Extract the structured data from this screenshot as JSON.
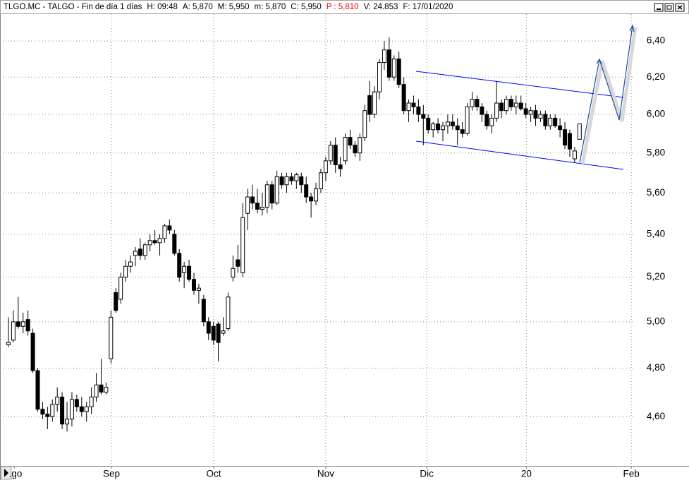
{
  "chart_data": {
    "type": "candlestick",
    "title": "TLGO.MC - TALGO - Fin de día 1 días",
    "info": [
      {
        "text": "H: 09:48",
        "color": "#000000"
      },
      {
        "text": "A: 5,870",
        "color": "#000000"
      },
      {
        "text": "M: 5,950",
        "color": "#000000"
      },
      {
        "text": "m: 5,870",
        "color": "#000000"
      },
      {
        "text": "C: 5,950",
        "color": "#000000"
      },
      {
        "text": "P : 5,810",
        "color": "#e00000"
      },
      {
        "text": "V: 24.853",
        "color": "#000000"
      },
      {
        "text": "F: 17/01/2020",
        "color": "#000000"
      }
    ],
    "log_scale": true,
    "grid": true,
    "up_color": "#ffffff",
    "down_color": "#000000",
    "wick_color": "#000000",
    "xlim": [
      -1.73,
      128.3
    ],
    "ylim": [
      4.405,
      6.553
    ],
    "xticks": [
      {
        "value": 1.2,
        "label": ".go"
      },
      {
        "value": 21.1,
        "label": "Sep"
      },
      {
        "value": 42.05,
        "label": "Oct"
      },
      {
        "value": 65.0,
        "label": "Nov"
      },
      {
        "value": 85.7,
        "label": "Dic"
      },
      {
        "value": 106.1,
        "label": "20"
      },
      {
        "value": 127.6,
        "label": "Feb"
      }
    ],
    "yticks": [
      {
        "value": 4.6,
        "label": "4,60"
      },
      {
        "value": 4.8,
        "label": "4,80"
      },
      {
        "value": 5.0,
        "label": "5,00"
      },
      {
        "value": 5.2,
        "label": "5,20"
      },
      {
        "value": 5.4,
        "label": "5,40"
      },
      {
        "value": 5.6,
        "label": "5,60"
      },
      {
        "value": 5.8,
        "label": "5,80"
      },
      {
        "value": 6.0,
        "label": "6,00"
      },
      {
        "value": 6.2,
        "label": "6,20"
      },
      {
        "value": 6.4,
        "label": "6,40"
      }
    ],
    "x": [
      0,
      1,
      2,
      3,
      4,
      5,
      6,
      7,
      8,
      9,
      10,
      11,
      12,
      13,
      14,
      15,
      16,
      17,
      18,
      19,
      20,
      21,
      22,
      23,
      24,
      25,
      26,
      27,
      28,
      29,
      30,
      31,
      32,
      33,
      34,
      35,
      36,
      37,
      38,
      39,
      40,
      41,
      42,
      43,
      44,
      45,
      46,
      47,
      48,
      49,
      50,
      51,
      52,
      53,
      54,
      55,
      56,
      57,
      58,
      59,
      60,
      61,
      62,
      63,
      64,
      65,
      66,
      67,
      68,
      69,
      70,
      71,
      72,
      73,
      74,
      75,
      76,
      77,
      78,
      79,
      80,
      81,
      82,
      83,
      84,
      85,
      86,
      87,
      88,
      89,
      90,
      91,
      92,
      93,
      94,
      95,
      96,
      97,
      98,
      99,
      100,
      101,
      102,
      103,
      104,
      105,
      106,
      107,
      108,
      109,
      110,
      111,
      112,
      113,
      114,
      115,
      116,
      117
    ],
    "open": [
      4.9,
      4.92,
      5.0,
      4.98,
      5.01,
      4.95,
      4.79,
      4.63,
      4.61,
      4.6,
      4.65,
      4.68,
      4.57,
      4.59,
      4.67,
      4.64,
      4.62,
      4.64,
      4.68,
      4.73,
      4.7,
      4.84,
      5.13,
      5.1,
      5.2,
      5.25,
      5.3,
      5.33,
      5.3,
      5.35,
      5.37,
      5.36,
      5.38,
      5.44,
      5.4,
      5.31,
      5.22,
      5.25,
      5.19,
      5.14,
      5.1,
      5.0,
      4.98,
      4.99,
      4.95,
      4.97,
      5.2,
      5.28,
      5.22,
      5.5,
      5.58,
      5.55,
      5.52,
      5.53,
      5.64,
      5.55,
      5.68,
      5.64,
      5.68,
      5.66,
      5.68,
      5.64,
      5.58,
      5.56,
      5.62,
      5.7,
      5.76,
      5.84,
      5.74,
      5.76,
      5.88,
      5.84,
      5.8,
      5.88,
      6.1,
      6.0,
      6.12,
      6.28,
      6.35,
      6.2,
      6.3,
      6.16,
      6.02,
      6.06,
      6.04,
      6.0,
      5.98,
      5.92,
      5.95,
      5.92,
      5.94,
      5.96,
      5.94,
      5.92,
      5.9,
      6.04,
      6.08,
      6.04,
      6.0,
      5.94,
      5.98,
      6.06,
      6.02,
      6.08,
      6.04,
      6.06,
      6.03,
      6.0,
      6.02,
      5.98,
      6.0,
      5.94,
      5.98,
      5.94,
      5.92,
      5.9,
      5.77,
      5.87
    ],
    "high": [
      5.02,
      5.05,
      5.11,
      5.04,
      5.05,
      4.97,
      4.8,
      4.66,
      4.64,
      4.67,
      4.72,
      4.7,
      4.66,
      4.7,
      4.69,
      4.68,
      4.66,
      4.72,
      4.78,
      4.84,
      4.74,
      5.05,
      5.15,
      5.22,
      5.28,
      5.3,
      5.34,
      5.38,
      5.36,
      5.4,
      5.42,
      5.4,
      5.45,
      5.47,
      5.42,
      5.33,
      5.27,
      5.28,
      5.22,
      5.17,
      5.12,
      5.02,
      5.0,
      5.0,
      5.02,
      5.13,
      5.3,
      5.35,
      5.55,
      5.62,
      5.64,
      5.62,
      5.6,
      5.66,
      5.66,
      5.71,
      5.7,
      5.7,
      5.7,
      5.7,
      5.7,
      5.68,
      5.6,
      5.65,
      5.72,
      5.78,
      5.86,
      5.88,
      5.78,
      5.9,
      5.92,
      5.86,
      5.9,
      6.05,
      6.18,
      6.15,
      6.3,
      6.4,
      6.42,
      6.32,
      6.34,
      6.2,
      6.08,
      6.1,
      6.08,
      6.05,
      6.0,
      5.96,
      5.98,
      5.96,
      6.0,
      6.0,
      5.98,
      5.96,
      6.06,
      6.12,
      6.1,
      6.06,
      6.02,
      6.0,
      6.18,
      6.08,
      6.1,
      6.1,
      6.1,
      6.1,
      6.06,
      6.04,
      6.05,
      6.02,
      6.02,
      6.0,
      6.0,
      5.98,
      5.96,
      5.92,
      5.83,
      5.95
    ],
    "low": [
      4.89,
      4.91,
      4.97,
      4.95,
      4.94,
      4.78,
      4.62,
      4.59,
      4.55,
      4.58,
      4.62,
      4.55,
      4.54,
      4.56,
      4.62,
      4.6,
      4.58,
      4.61,
      4.66,
      4.69,
      4.69,
      4.82,
      5.04,
      5.08,
      5.18,
      5.22,
      5.25,
      5.28,
      5.28,
      5.32,
      5.35,
      5.3,
      5.36,
      5.4,
      5.3,
      5.18,
      5.15,
      5.18,
      5.12,
      5.08,
      4.98,
      4.92,
      4.9,
      4.83,
      4.94,
      4.96,
      5.18,
      5.22,
      5.2,
      5.42,
      5.52,
      5.5,
      5.49,
      5.5,
      5.52,
      5.54,
      5.62,
      5.6,
      5.64,
      5.62,
      5.6,
      5.55,
      5.48,
      5.54,
      5.6,
      5.66,
      5.74,
      5.7,
      5.68,
      5.74,
      5.82,
      5.78,
      5.76,
      5.86,
      5.96,
      5.98,
      6.08,
      6.24,
      6.18,
      6.18,
      6.14,
      6.0,
      5.96,
      6.0,
      5.96,
      5.84,
      5.9,
      5.88,
      5.9,
      5.86,
      5.9,
      5.92,
      5.84,
      5.88,
      5.89,
      6.02,
      6.02,
      5.96,
      5.92,
      5.9,
      5.96,
      5.98,
      6.0,
      6.02,
      6.0,
      6.02,
      5.98,
      5.96,
      5.94,
      5.96,
      5.92,
      5.92,
      5.93,
      5.88,
      5.82,
      5.78,
      5.75,
      5.87
    ],
    "close": [
      4.91,
      5.0,
      4.98,
      5.0,
      4.96,
      4.79,
      4.63,
      4.61,
      4.6,
      4.65,
      4.68,
      4.57,
      4.59,
      4.67,
      4.64,
      4.62,
      4.64,
      4.68,
      4.73,
      4.7,
      4.72,
      5.02,
      5.05,
      5.2,
      5.25,
      5.27,
      5.32,
      5.3,
      5.35,
      5.37,
      5.36,
      5.38,
      5.44,
      5.42,
      5.31,
      5.2,
      5.25,
      5.19,
      5.14,
      5.15,
      5.0,
      4.95,
      4.92,
      4.91,
      4.96,
      5.11,
      5.24,
      5.25,
      5.48,
      5.58,
      5.55,
      5.52,
      5.53,
      5.64,
      5.55,
      5.68,
      5.64,
      5.68,
      5.66,
      5.69,
      5.64,
      5.58,
      5.56,
      5.62,
      5.7,
      5.76,
      5.84,
      5.74,
      5.72,
      5.88,
      5.84,
      5.8,
      5.88,
      6.02,
      6.0,
      6.12,
      6.28,
      6.35,
      6.2,
      6.3,
      6.16,
      6.02,
      6.06,
      6.04,
      6.0,
      5.98,
      5.92,
      5.95,
      5.92,
      5.94,
      5.96,
      5.94,
      5.92,
      5.9,
      6.04,
      6.08,
      6.04,
      6.0,
      5.94,
      5.98,
      6.06,
      6.02,
      6.08,
      6.04,
      6.06,
      6.03,
      6.0,
      6.02,
      5.98,
      6.0,
      5.94,
      5.98,
      5.94,
      5.92,
      5.84,
      5.82,
      5.81,
      5.95
    ]
  }
}
